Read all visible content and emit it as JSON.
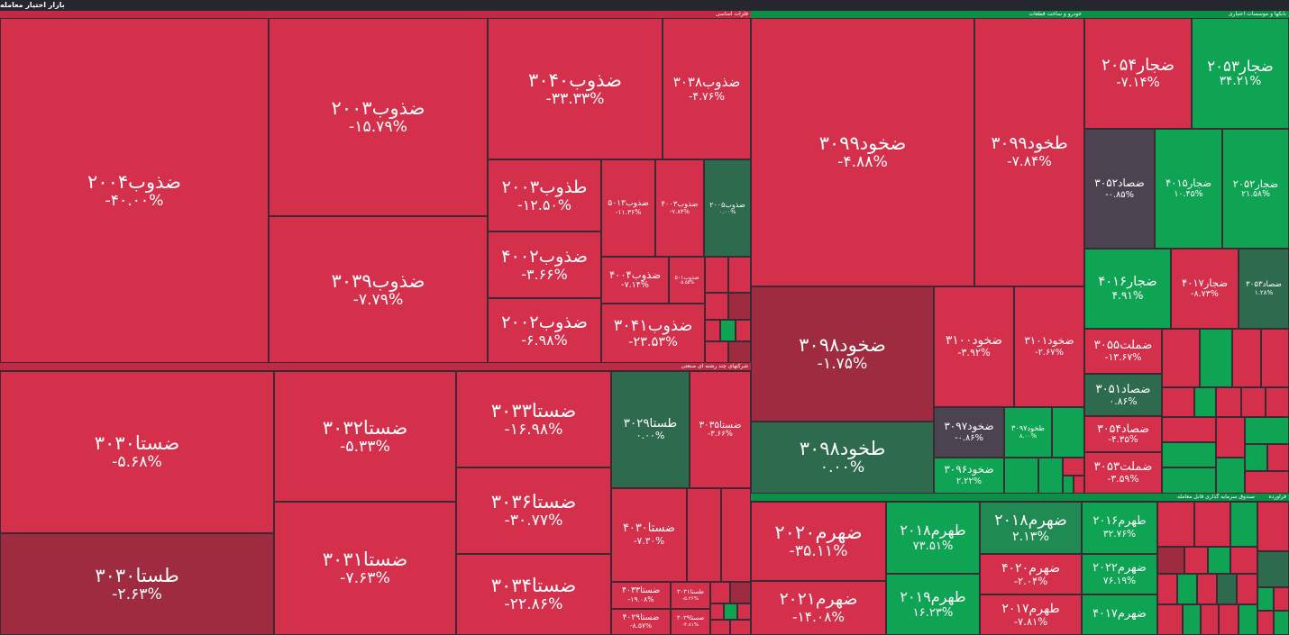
{
  "header": {
    "title": "بازار اختیار معامله"
  },
  "sectors": [
    {
      "name": "فلزات اساسی",
      "tiles": [
        {
          "label": "ضذوب۲۰۰۴",
          "change": "-۴۰.۰۰%",
          "color": "#d42f4b"
        },
        {
          "label": "ضذوب۲۰۰۳",
          "change": "-۱۵.۷۹%",
          "color": "#d42f4b"
        },
        {
          "label": "ضذوب۳۰۳۹",
          "change": "-۷.۷۹%",
          "color": "#d42f4b"
        },
        {
          "label": "ضذوب۳۰۴۰",
          "change": "-۳۳.۳۳%",
          "color": "#d42f4b"
        },
        {
          "label": "ضذوب۳۰۳۸",
          "change": "-۴.۷۶%",
          "color": "#d42f4b"
        },
        {
          "label": "طذوب۲۰۰۳",
          "change": "-۱۲.۵۰%",
          "color": "#d42f4b"
        },
        {
          "label": "ضذوب۴۰۰۲",
          "change": "-۳.۶۶%",
          "color": "#d42f4b"
        },
        {
          "label": "ضذوب۲۰۰۲",
          "change": "-۶.۹۸%",
          "color": "#d42f4b"
        },
        {
          "label": "ضذوب۵۰۱۳",
          "change": "-۱۱.۳۶%",
          "color": "#d42f4b"
        },
        {
          "label": "ضذوب۴۰۰۳",
          "change": "-۷.۸۴%",
          "color": "#d42f4b"
        },
        {
          "label": "ضذوب۲۰۰۵",
          "change": "۰.۰۰%",
          "color": "#2e6a4e"
        },
        {
          "label": "ضذوب۴۰۰۴",
          "change": "-۷.۱۴%",
          "color": "#d42f4b"
        },
        {
          "label": "ضذوب۵۰۱",
          "change": "-۵.۵۵%",
          "color": "#d42f4b"
        },
        {
          "label": "ضذوب۳۰۴۱",
          "change": "-۲۳.۵۳%",
          "color": "#d42f4b"
        }
      ]
    },
    {
      "name": "شرکتهای چند رشته ای صنعتی",
      "tiles": [
        {
          "label": "ضستا۳۰۳۰",
          "change": "-۵.۶۸%",
          "color": "#d42f4b"
        },
        {
          "label": "طستا۳۰۳۰",
          "change": "-۲.۶۳%",
          "color": "#9e2b40"
        },
        {
          "label": "ضستا۳۰۳۲",
          "change": "-۵.۳۳%",
          "color": "#d42f4b"
        },
        {
          "label": "ضستا۳۰۳۱",
          "change": "-۷.۶۳%",
          "color": "#d42f4b"
        },
        {
          "label": "ضستا۳۰۳۳",
          "change": "-۱۶.۹۸%",
          "color": "#d42f4b"
        },
        {
          "label": "ضستا۳۰۳۶",
          "change": "-۳۰.۷۷%",
          "color": "#d42f4b"
        },
        {
          "label": "ضستا۳۰۳۴",
          "change": "-۲۲.۸۶%",
          "color": "#d42f4b"
        },
        {
          "label": "طستا۳۰۲۹",
          "change": "۰.۰۰%",
          "color": "#2e6a4e"
        },
        {
          "label": "ضستا۳۰۳۵",
          "change": "-۳.۶۶%",
          "color": "#d42f4b"
        },
        {
          "label": "ضستا۴۰۳۰",
          "change": "-۷.۳۰%",
          "color": "#d42f4b"
        },
        {
          "label": "ضستا۴۰۳۳",
          "change": "-۱۹.۰۸%",
          "color": "#d42f4b"
        },
        {
          "label": "طستا۳۰۳۱",
          "change": "-۵.۲۶%",
          "color": "#d42f4b"
        },
        {
          "label": "ضستا۴۰۲۹",
          "change": "-۸.۵۷%",
          "color": "#d42f4b"
        },
        {
          "label": "ضستا۳۰۳۹",
          "change": "-۴.۸۱%",
          "color": "#d42f4b"
        }
      ]
    },
    {
      "name": "خودرو و ساخت قطعات",
      "tiles": [
        {
          "label": "ضخود۳۰۹۹",
          "change": "-۴.۸۸%",
          "color": "#d42f4b"
        },
        {
          "label": "طخود۳۰۹۹",
          "change": "-۷.۸۴%",
          "color": "#d42f4b"
        },
        {
          "label": "ضخود۳۰۹۸",
          "change": "-۱.۷۵%",
          "color": "#9e2b40"
        },
        {
          "label": "طخود۳۰۹۸",
          "change": "۰.۰۰%",
          "color": "#2e6a4e"
        },
        {
          "label": "ضخود۳۱۰۰",
          "change": "-۳.۹۲%",
          "color": "#d42f4b"
        },
        {
          "label": "ضخود۳۱۰۱",
          "change": "-۲.۶۷%",
          "color": "#d42f4b"
        },
        {
          "label": "ضخود۳۰۹۷",
          "change": "-۰.۸۶%",
          "color": "#4b4450"
        },
        {
          "label": "طخود۳۰۹۷",
          "change": "۸.۰۰%",
          "color": "#0fa453"
        },
        {
          "label": "ضخود۳۰۹۶",
          "change": "۲.۲۲%",
          "color": "#0fa453"
        }
      ]
    },
    {
      "name": "بانکها و موسسات اعتباری",
      "tiles": [
        {
          "label": "ضجار۲۰۵۴",
          "change": "-۷.۱۴%",
          "color": "#d42f4b"
        },
        {
          "label": "ضجار۲۰۵۳",
          "change": "۳۴.۲۱%",
          "color": "#0fa453"
        },
        {
          "label": "ضصاد۳۰۵۲",
          "change": "-۰.۸۵%",
          "color": "#4b4450"
        },
        {
          "label": "ضجار۴۰۱۵",
          "change": "۱۰.۴۵%",
          "color": "#0fa453"
        },
        {
          "label": "ضجار۲۰۵۲",
          "change": "۲۱.۵۸%",
          "color": "#0fa453"
        },
        {
          "label": "ضجار۴۰۱۶",
          "change": "۴.۹۱%",
          "color": "#0fa453"
        },
        {
          "label": "ضجار۴۰۱۷",
          "change": "-۸.۷۳%",
          "color": "#d42f4b"
        },
        {
          "label": "ضصاد۳۰۵۳",
          "change": "۱.۲۸%",
          "color": "#2e6a4e"
        },
        {
          "label": "ضملت۳۰۵۵",
          "change": "-۱۳.۶۷%",
          "color": "#d42f4b"
        },
        {
          "label": "ضصاد۳۰۵۱",
          "change": "۰.۸۶%",
          "color": "#2e6a4e"
        },
        {
          "label": "ضصاد۳۰۵۴",
          "change": "-۴.۳۵%",
          "color": "#d42f4b"
        },
        {
          "label": "ضملت۳۰۵۳",
          "change": "-۳.۵۹%",
          "color": "#d42f4b"
        }
      ]
    },
    {
      "name": "صندوق سرمایه گذاری قابل معامله",
      "tiles": [
        {
          "label": "ضهرم۲۰۲۰",
          "change": "-۳۵.۱۱%",
          "color": "#d42f4b"
        },
        {
          "label": "ضهرم۲۰۲۱",
          "change": "-۱۴.۰۸%",
          "color": "#d42f4b"
        },
        {
          "label": "طهرم۲۰۱۸",
          "change": "۷۳.۵۱%",
          "color": "#0fa453"
        },
        {
          "label": "طهرم۲۰۱۹",
          "change": "۱۶.۲۳%",
          "color": "#0fa453"
        },
        {
          "label": "ضهرم۲۰۱۸",
          "change": "۲.۱۳%",
          "color": "#1f8a52"
        },
        {
          "label": "ضهرم۴۰۲۰",
          "change": "-۲.۰۴%",
          "color": "#d42f4b"
        },
        {
          "label": "طهرم۲۰۱۷",
          "change": "-۷.۸۱%",
          "color": "#d42f4b"
        },
        {
          "label": "طهرم۲۰۱۶",
          "change": "۳۲.۷۶%",
          "color": "#0fa453"
        },
        {
          "label": "ضهرم۲۰۲۲",
          "change": "۷۶.۱۹%",
          "color": "#0fa453"
        },
        {
          "label": "ضهرم۴۰۱۷",
          "color": "#0fa453"
        }
      ]
    },
    {
      "name": "فراورده",
      "tiles": []
    }
  ]
}
